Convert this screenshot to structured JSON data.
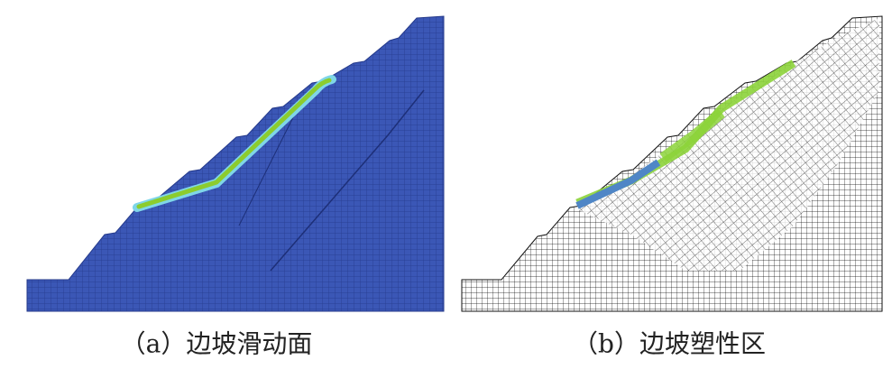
{
  "panels": [
    {
      "caption": "（a）边坡滑动面"
    },
    {
      "caption": "（b）边坡塑性区"
    }
  ]
}
